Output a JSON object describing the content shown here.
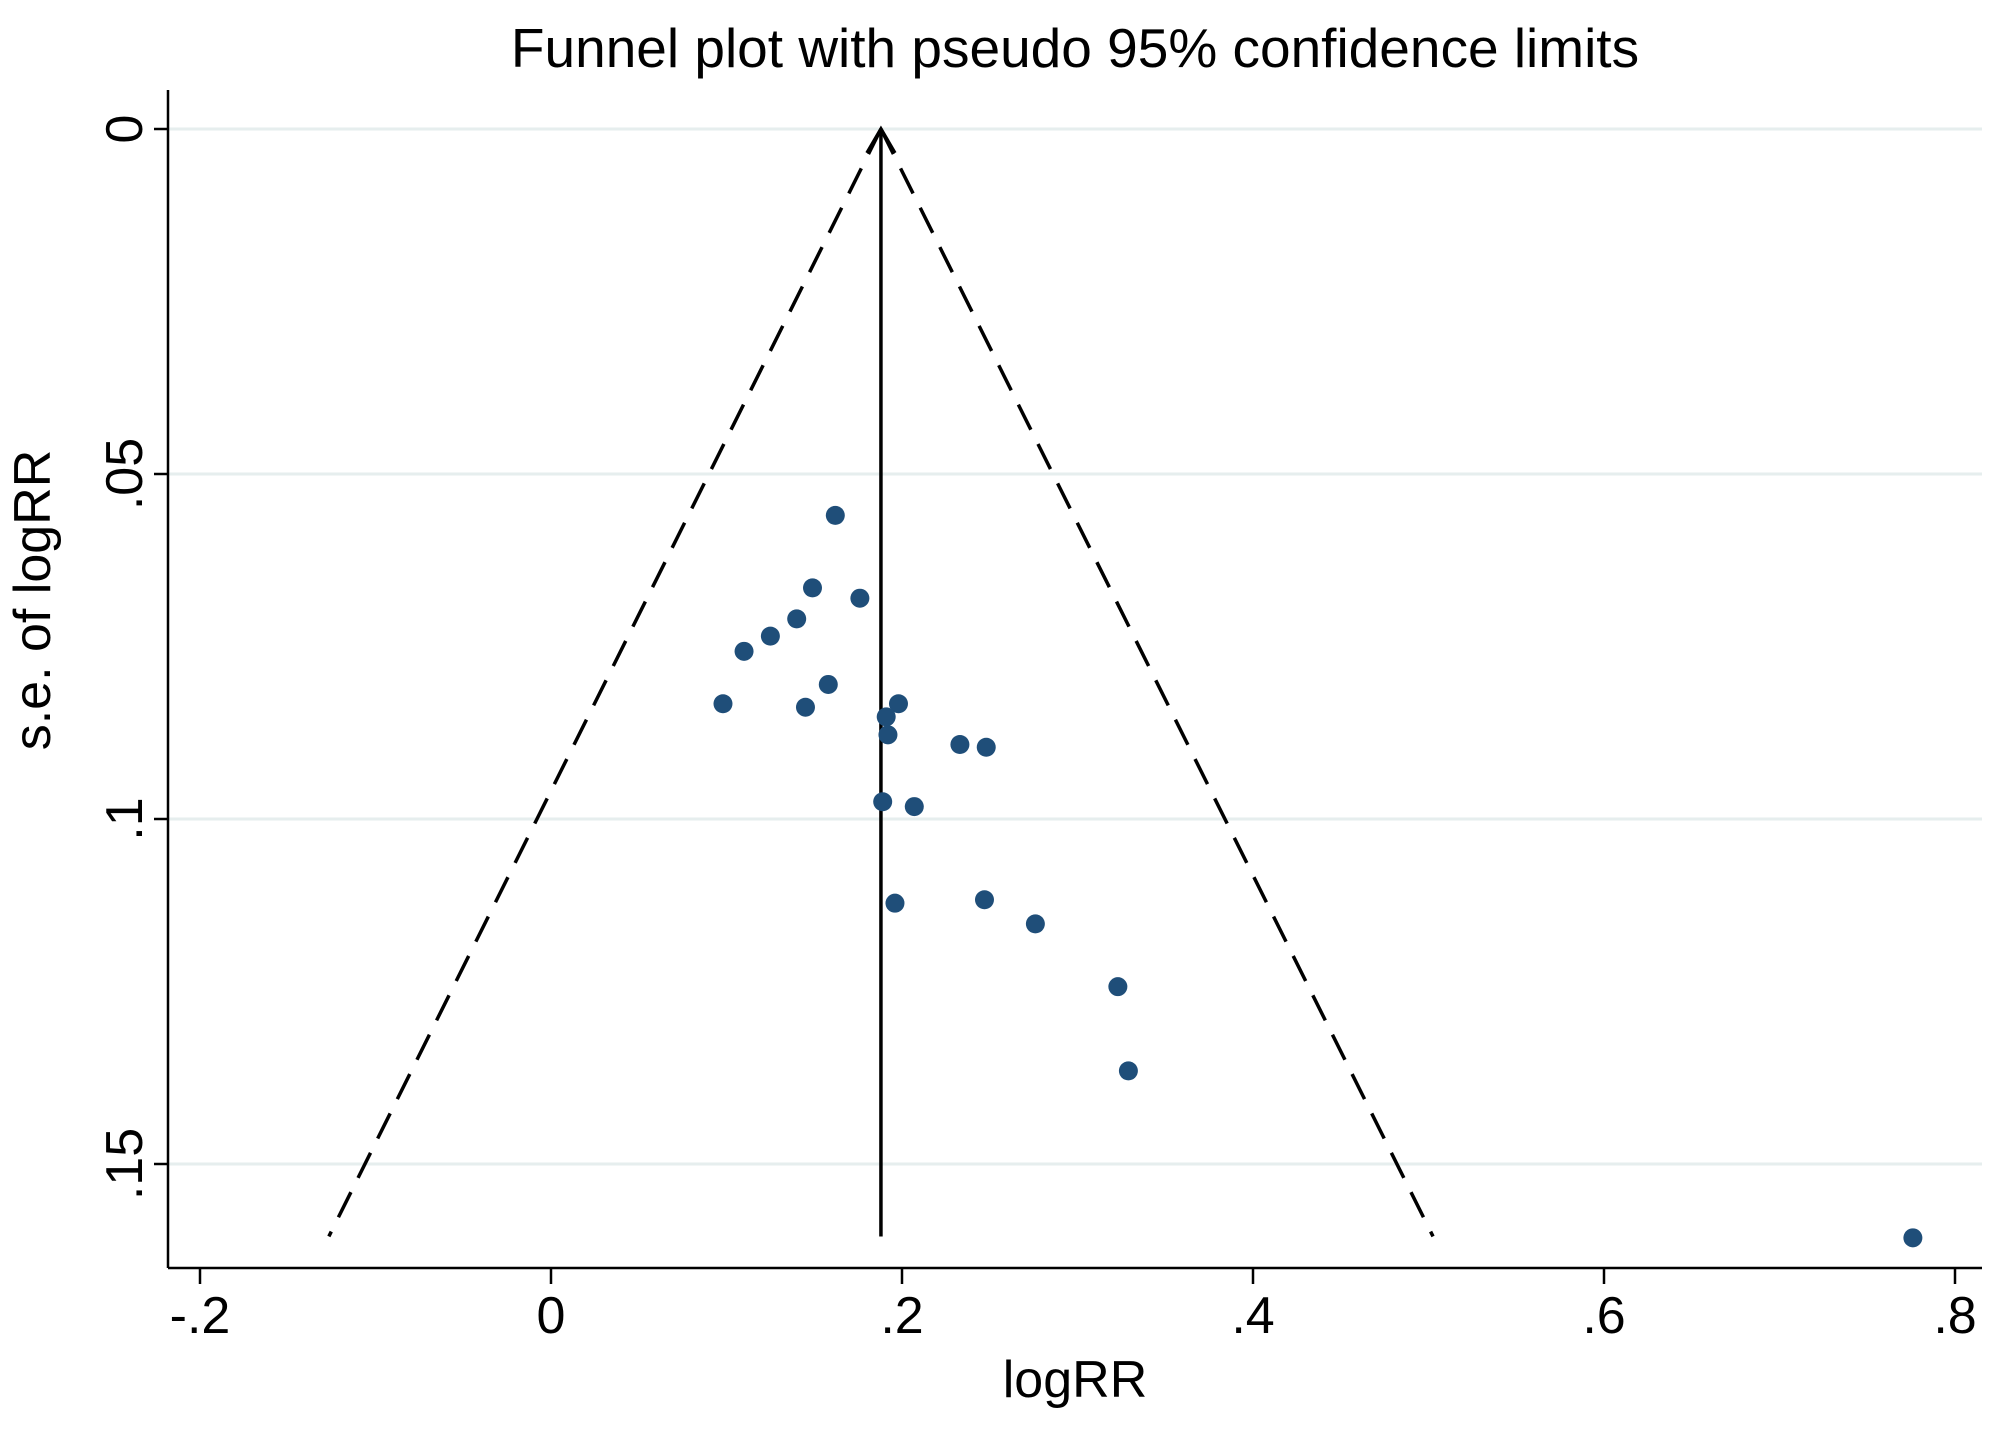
{
  "chart_data": {
    "type": "scatter",
    "title": "Funnel plot with pseudo 95% confidence limits",
    "xlabel": "logRR",
    "ylabel": "s.e. of logRR",
    "xlim": [
      -0.2,
      0.8
    ],
    "ylim": [
      0,
      0.16
    ],
    "y_reversed": true,
    "grid": true,
    "x_ticks": [
      -0.2,
      0,
      0.2,
      0.4,
      0.6,
      0.8
    ],
    "x_tick_labels": [
      "-.2",
      "0",
      ".2",
      ".4",
      ".6",
      ".8"
    ],
    "y_ticks": [
      0,
      0.05,
      0.1,
      0.15
    ],
    "y_tick_labels": [
      "0",
      ".05",
      ".1",
      ".15"
    ],
    "pooled_estimate": 0.188,
    "confidence_limit_z": 1.96,
    "max_se": 0.1605,
    "point_color": "#1f4e79",
    "points": [
      {
        "x": 0.162,
        "y": 0.056
      },
      {
        "x": 0.149,
        "y": 0.0665
      },
      {
        "x": 0.176,
        "y": 0.068
      },
      {
        "x": 0.14,
        "y": 0.071
      },
      {
        "x": 0.125,
        "y": 0.0735
      },
      {
        "x": 0.11,
        "y": 0.0757
      },
      {
        "x": 0.158,
        "y": 0.0805
      },
      {
        "x": 0.098,
        "y": 0.0833
      },
      {
        "x": 0.145,
        "y": 0.0838
      },
      {
        "x": 0.198,
        "y": 0.0833
      },
      {
        "x": 0.191,
        "y": 0.0852
      },
      {
        "x": 0.192,
        "y": 0.0878
      },
      {
        "x": 0.233,
        "y": 0.0892
      },
      {
        "x": 0.248,
        "y": 0.0896
      },
      {
        "x": 0.189,
        "y": 0.0975
      },
      {
        "x": 0.207,
        "y": 0.0982
      },
      {
        "x": 0.196,
        "y": 0.1122
      },
      {
        "x": 0.247,
        "y": 0.1117
      },
      {
        "x": 0.276,
        "y": 0.1152
      },
      {
        "x": 0.323,
        "y": 0.1243
      },
      {
        "x": 0.329,
        "y": 0.1365
      },
      {
        "x": 0.776,
        "y": 0.1607
      }
    ]
  }
}
